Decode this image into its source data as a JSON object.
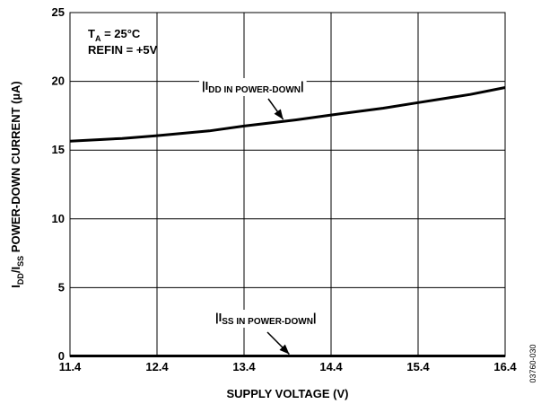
{
  "chart_data": {
    "type": "line",
    "xlabel": "SUPPLY VOLTAGE (V)",
    "ylabel": {
      "main": "I",
      "sub1": "DD",
      "mid": "/I",
      "sub2": "SS",
      "rest": " POWER-DOWN CURRENT (µA)"
    },
    "xlim": [
      11.4,
      16.4
    ],
    "ylim": [
      0,
      25
    ],
    "x_ticks": [
      "11.4",
      "12.4",
      "13.4",
      "14.4",
      "15.4",
      "16.4"
    ],
    "y_ticks": [
      "0",
      "5",
      "10",
      "15",
      "20",
      "25"
    ],
    "grid": true,
    "conditions": [
      {
        "main": "T",
        "sub": "A",
        "rest": " = 25°C"
      },
      {
        "main": "REFIN = +5V",
        "sub": "",
        "rest": ""
      }
    ],
    "series": [
      {
        "name": "IDD IN POWER-DOWN",
        "label_parts": {
          "open": "|I",
          "sub": "DD IN POWER-DOWN",
          "close": "|"
        },
        "x": [
          11.4,
          12.0,
          12.4,
          13.0,
          13.4,
          14.0,
          14.4,
          15.0,
          15.4,
          16.0,
          16.4
        ],
        "y": [
          15.65,
          15.85,
          16.05,
          16.4,
          16.75,
          17.2,
          17.55,
          18.05,
          18.45,
          19.05,
          19.55
        ]
      },
      {
        "name": "ISS IN POWER-DOWN",
        "label_parts": {
          "open": "|I",
          "sub": "SS IN POWER-DOWN",
          "close": "|"
        },
        "x": [
          11.4,
          12.4,
          13.4,
          14.4,
          15.4,
          16.4
        ],
        "y": [
          0.03,
          0.03,
          0.03,
          0.03,
          0.03,
          0.03
        ]
      }
    ],
    "figure_id": "03760-030"
  }
}
